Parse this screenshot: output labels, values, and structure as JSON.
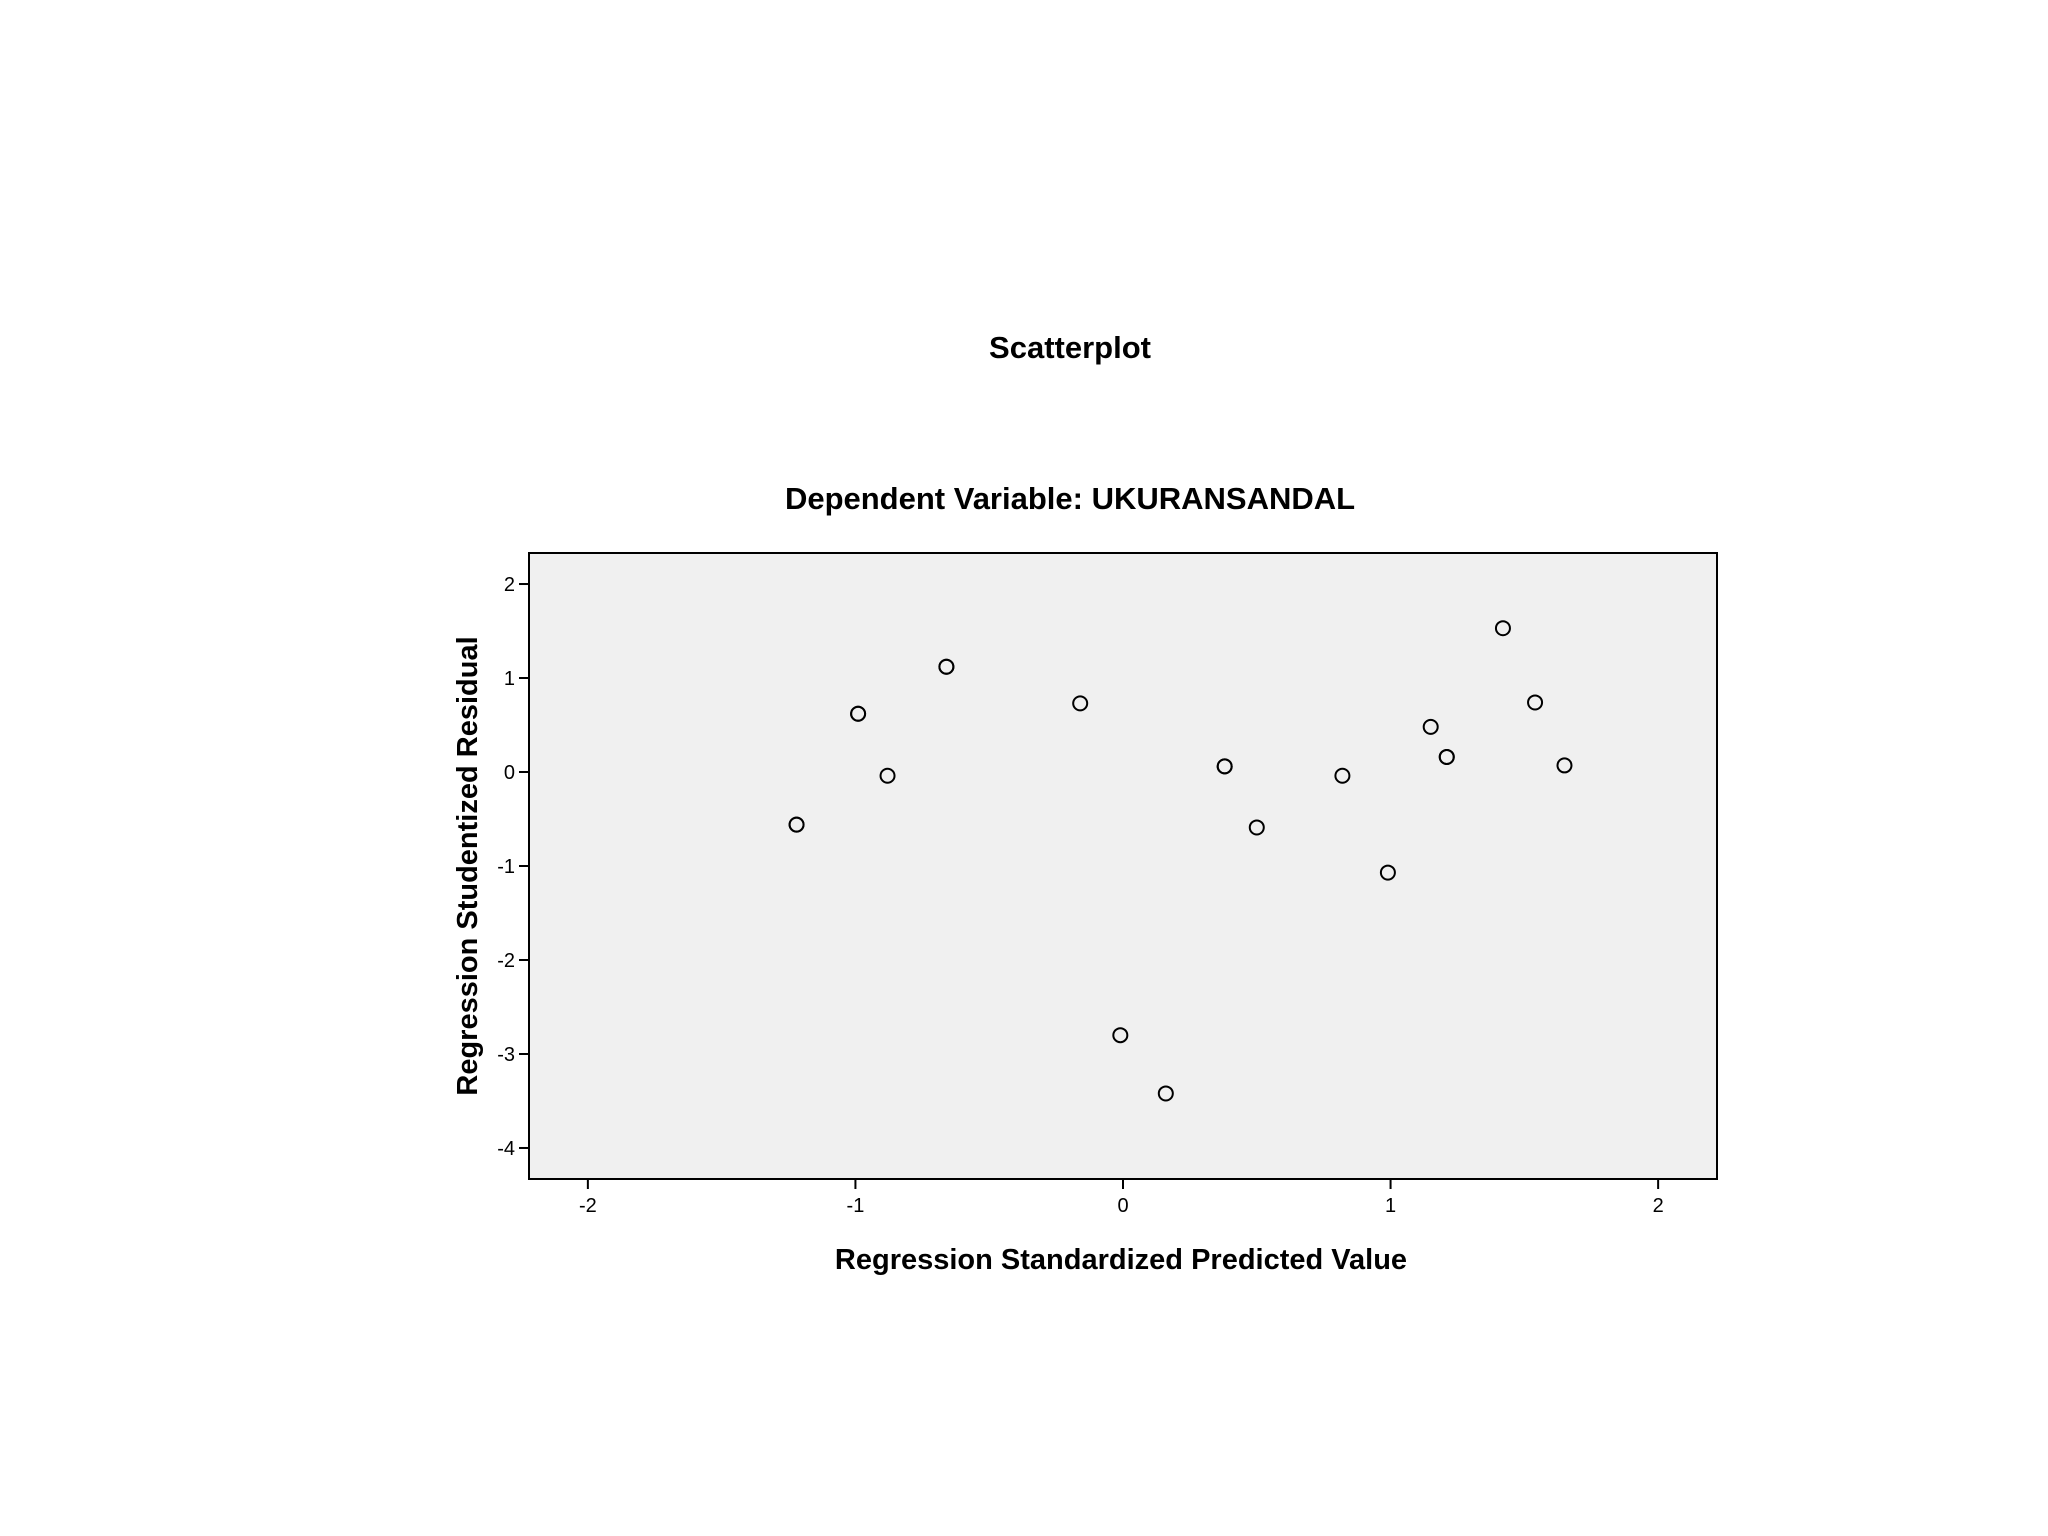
{
  "chart_data": {
    "type": "scatter",
    "title": "Scatterplot",
    "subtitle": "Dependent Variable: UKURANSANDAL",
    "xlabel": "Regression Standardized Predicted Value",
    "ylabel": "Regression Studentized Residual",
    "xlim": [
      -2.22,
      2.22
    ],
    "ylim": [
      -4.33,
      2.33
    ],
    "xticks": [
      -2,
      -1,
      0,
      1,
      2
    ],
    "yticks": [
      2,
      1,
      0,
      -1,
      -2,
      -3,
      -4
    ],
    "grid": false,
    "legend": "none",
    "colors": {
      "plot_background": "#f0f0f0",
      "marker_stroke": "#000000",
      "frame": "#000000"
    },
    "points": [
      {
        "x": -1.22,
        "y": -0.56
      },
      {
        "x": -1.22,
        "y": -0.56
      },
      {
        "x": -0.99,
        "y": 0.62
      },
      {
        "x": -0.99,
        "y": 0.62
      },
      {
        "x": -0.88,
        "y": -0.04
      },
      {
        "x": -0.66,
        "y": 1.12
      },
      {
        "x": -0.66,
        "y": 1.12
      },
      {
        "x": -0.16,
        "y": 0.73
      },
      {
        "x": -0.01,
        "y": -2.8
      },
      {
        "x": 0.16,
        "y": -3.42
      },
      {
        "x": 0.38,
        "y": 0.06
      },
      {
        "x": 0.38,
        "y": 0.06
      },
      {
        "x": 0.5,
        "y": -0.59
      },
      {
        "x": 0.82,
        "y": -0.04
      },
      {
        "x": 0.99,
        "y": -1.07
      },
      {
        "x": 1.15,
        "y": 0.48
      },
      {
        "x": 1.21,
        "y": 0.16
      },
      {
        "x": 1.21,
        "y": 0.16
      },
      {
        "x": 1.42,
        "y": 1.53
      },
      {
        "x": 1.54,
        "y": 0.74
      },
      {
        "x": 1.65,
        "y": 0.07
      }
    ]
  }
}
